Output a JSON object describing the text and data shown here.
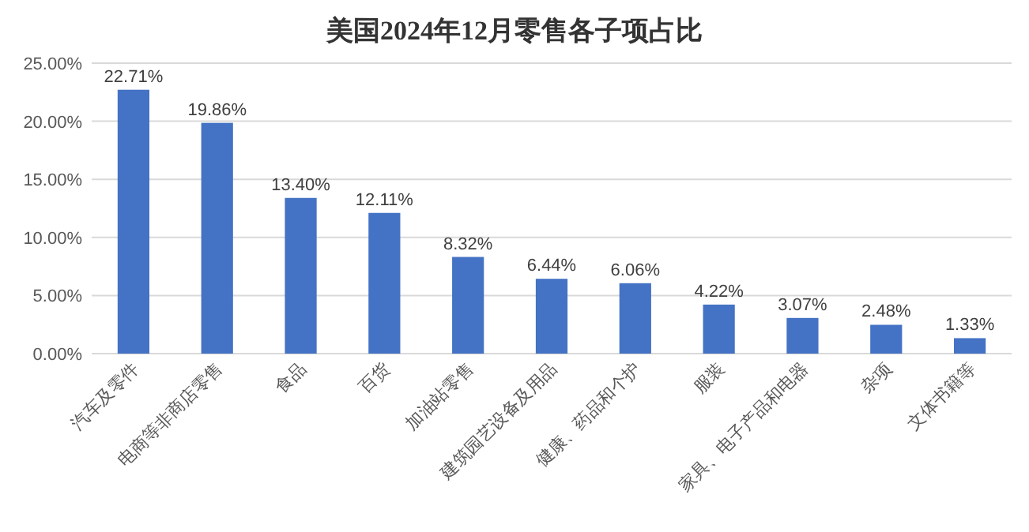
{
  "chart_data": {
    "type": "bar",
    "title": "美国2024年12月零售各子项占比",
    "categories": [
      "汽车及零件",
      "电商等非商店零售",
      "食品",
      "百货",
      "加油站零售",
      "建筑园艺设备及用品",
      "健康、药品和个护",
      "服装",
      "家具、电子产品和电器",
      "杂项",
      "文体书籍等"
    ],
    "values": [
      22.71,
      19.86,
      13.4,
      12.11,
      8.32,
      6.44,
      6.06,
      4.22,
      3.07,
      2.48,
      1.33
    ],
    "value_labels": [
      "22.71%",
      "19.86%",
      "13.40%",
      "12.11%",
      "8.32%",
      "6.44%",
      "6.06%",
      "4.22%",
      "3.07%",
      "2.48%",
      "1.33%"
    ],
    "color": "#4472c4",
    "ylim": [
      0,
      25
    ],
    "yticks": [
      {
        "value": 0,
        "label": "0.00%"
      },
      {
        "value": 5,
        "label": "5.00%"
      },
      {
        "value": 10,
        "label": "10.00%"
      },
      {
        "value": 15,
        "label": "15.00%"
      },
      {
        "value": 20,
        "label": "20.00%"
      },
      {
        "value": 25,
        "label": "25.00%"
      }
    ],
    "grid": "y"
  }
}
